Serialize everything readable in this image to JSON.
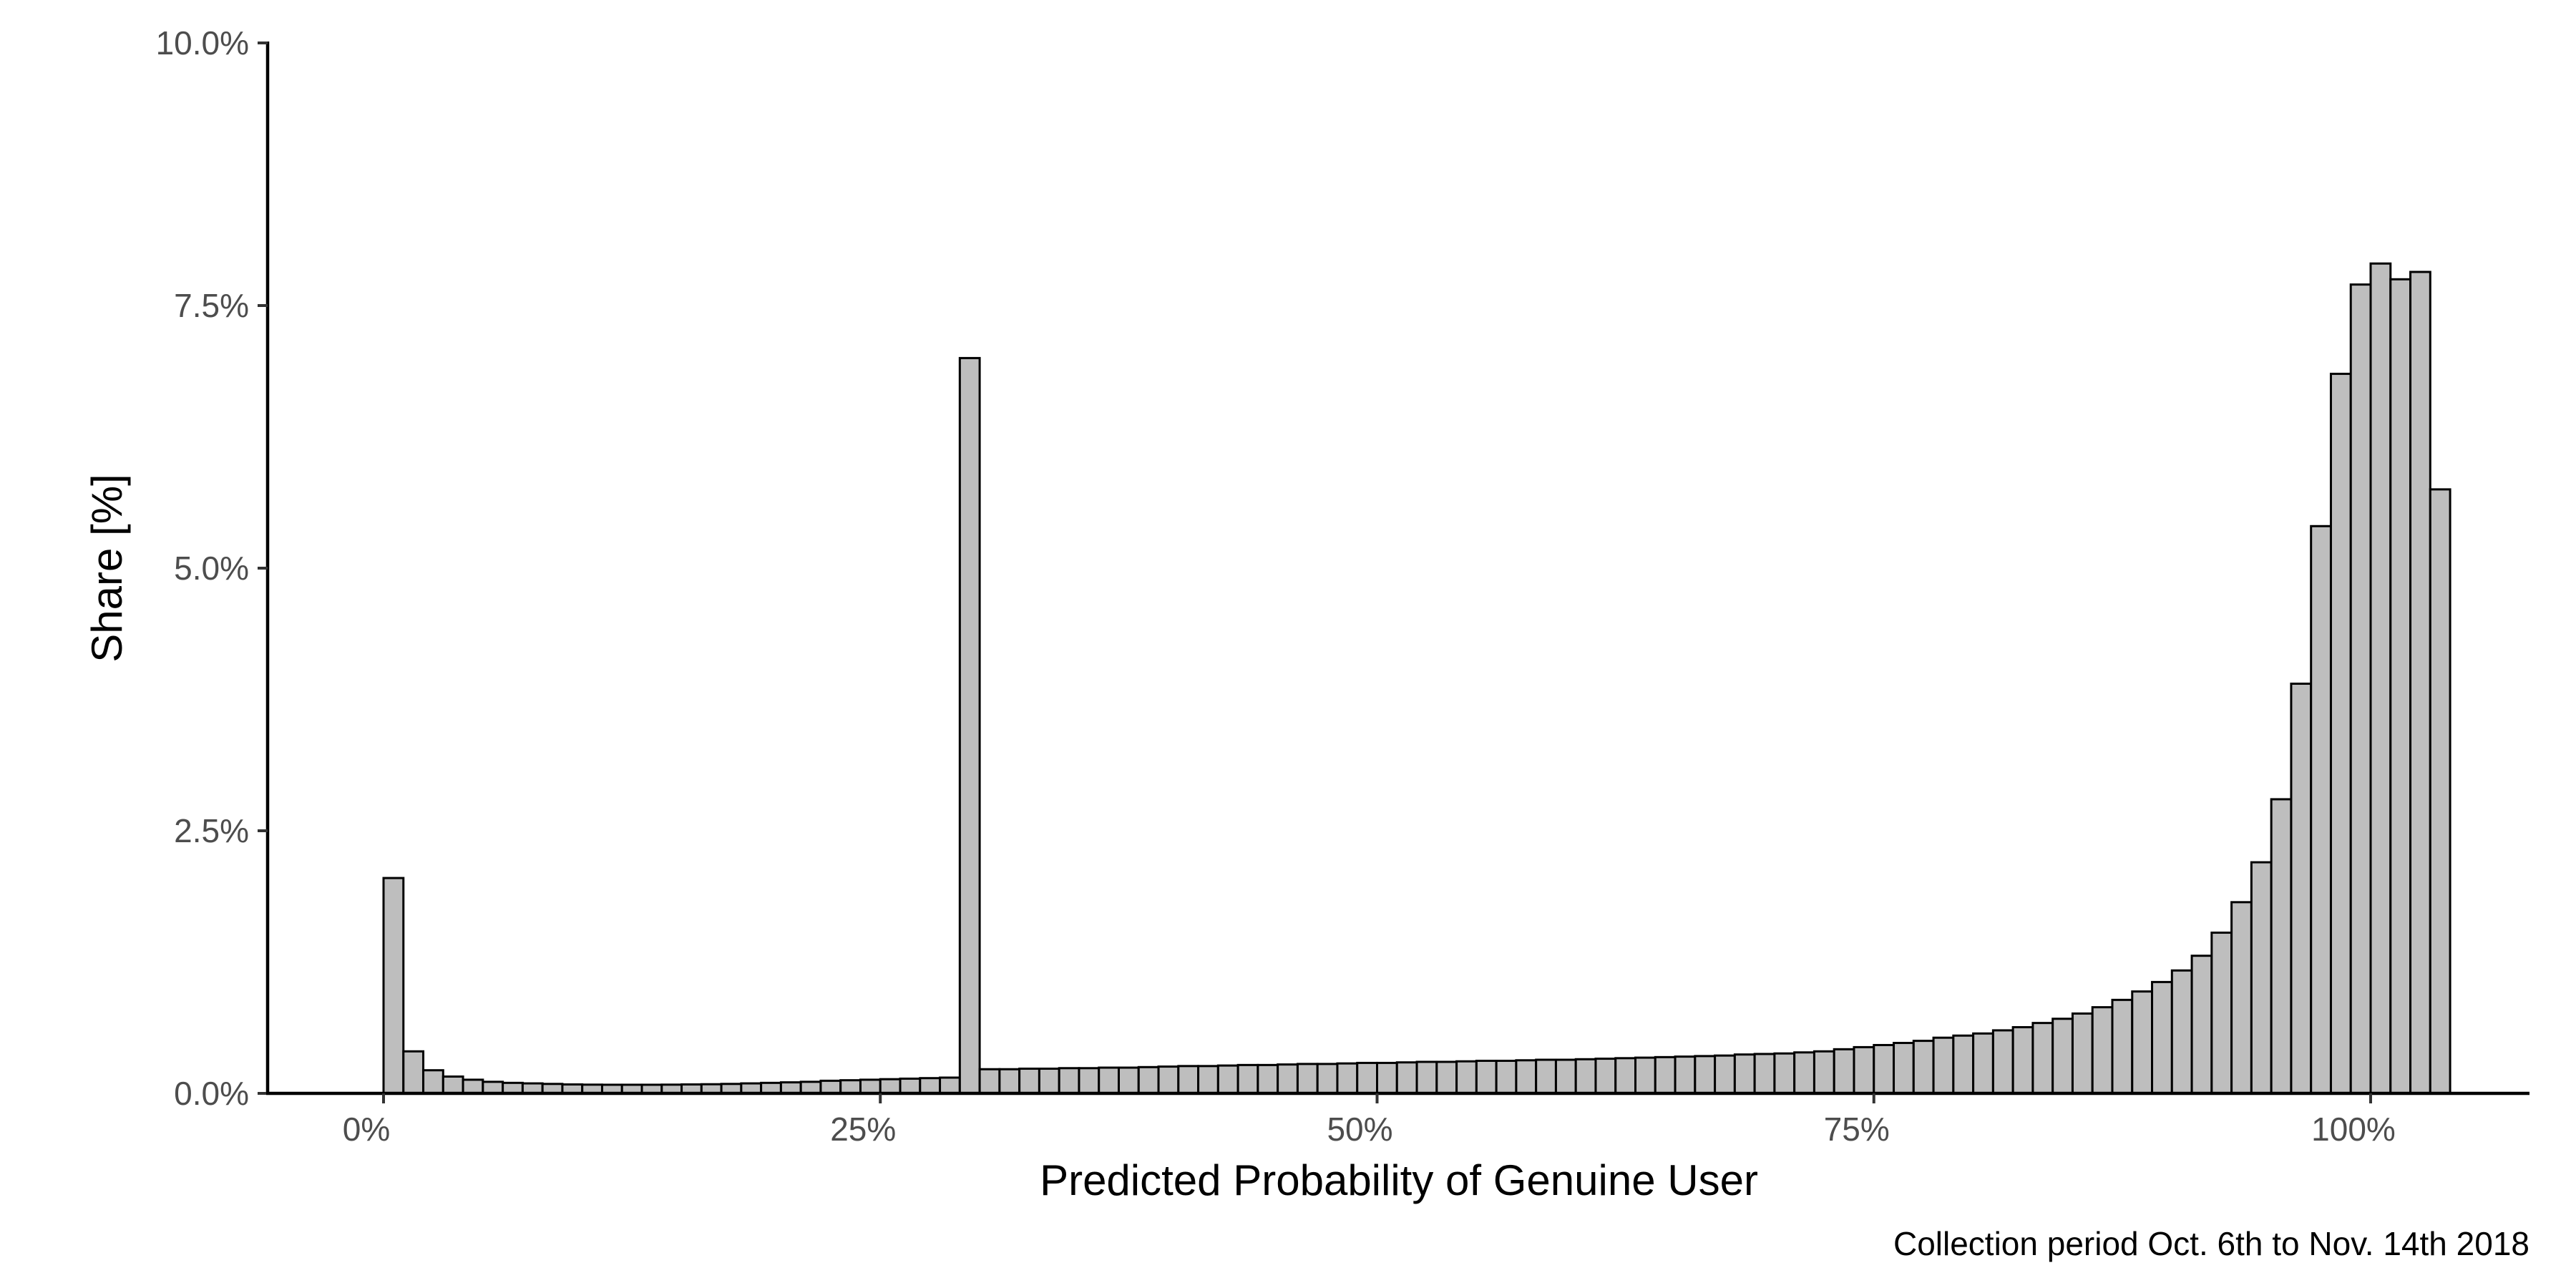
{
  "chart_data": {
    "type": "bar",
    "subtype": "histogram",
    "title": "",
    "xlabel": "Predicted Probability of Genuine User",
    "ylabel": "Share [%]",
    "caption": "Collection period Oct. 6th to Nov. 14th 2018",
    "xlim": [
      -0.06,
      1.05
    ],
    "ylim": [
      0,
      10
    ],
    "x_ticks": [
      0,
      0.25,
      0.5,
      0.75,
      1.0
    ],
    "x_tick_labels": [
      "0%",
      "25%",
      "50%",
      "75%",
      "100%"
    ],
    "y_ticks": [
      0,
      2.5,
      5,
      7.5,
      10
    ],
    "y_tick_labels": [
      "0.0%",
      "2.5%",
      "5.0%",
      "7.5%",
      "10.0%"
    ],
    "bin_width": 0.01,
    "bin_centers_start": 0.005,
    "grid": false,
    "legend": "none",
    "bar_fill": "#bebebe",
    "bar_stroke": "#000000",
    "values": [
      2.05,
      0.4,
      0.22,
      0.16,
      0.13,
      0.11,
      0.1,
      0.095,
      0.09,
      0.085,
      0.083,
      0.082,
      0.082,
      0.082,
      0.083,
      0.085,
      0.087,
      0.09,
      0.095,
      0.1,
      0.105,
      0.11,
      0.12,
      0.125,
      0.13,
      0.135,
      0.14,
      0.145,
      0.15,
      7.0,
      0.23,
      0.23,
      0.235,
      0.235,
      0.24,
      0.24,
      0.245,
      0.245,
      0.25,
      0.255,
      0.26,
      0.26,
      0.265,
      0.27,
      0.27,
      0.275,
      0.28,
      0.28,
      0.285,
      0.29,
      0.29,
      0.295,
      0.3,
      0.3,
      0.305,
      0.31,
      0.31,
      0.315,
      0.32,
      0.32,
      0.325,
      0.33,
      0.335,
      0.34,
      0.345,
      0.35,
      0.355,
      0.36,
      0.37,
      0.375,
      0.38,
      0.39,
      0.4,
      0.42,
      0.44,
      0.46,
      0.48,
      0.5,
      0.53,
      0.55,
      0.57,
      0.6,
      0.63,
      0.67,
      0.71,
      0.76,
      0.82,
      0.89,
      0.97,
      1.06,
      1.17,
      1.31,
      1.53,
      1.82,
      2.2,
      2.8,
      3.9,
      5.4,
      6.85,
      7.7,
      7.9,
      7.75,
      7.82,
      5.75
    ]
  }
}
